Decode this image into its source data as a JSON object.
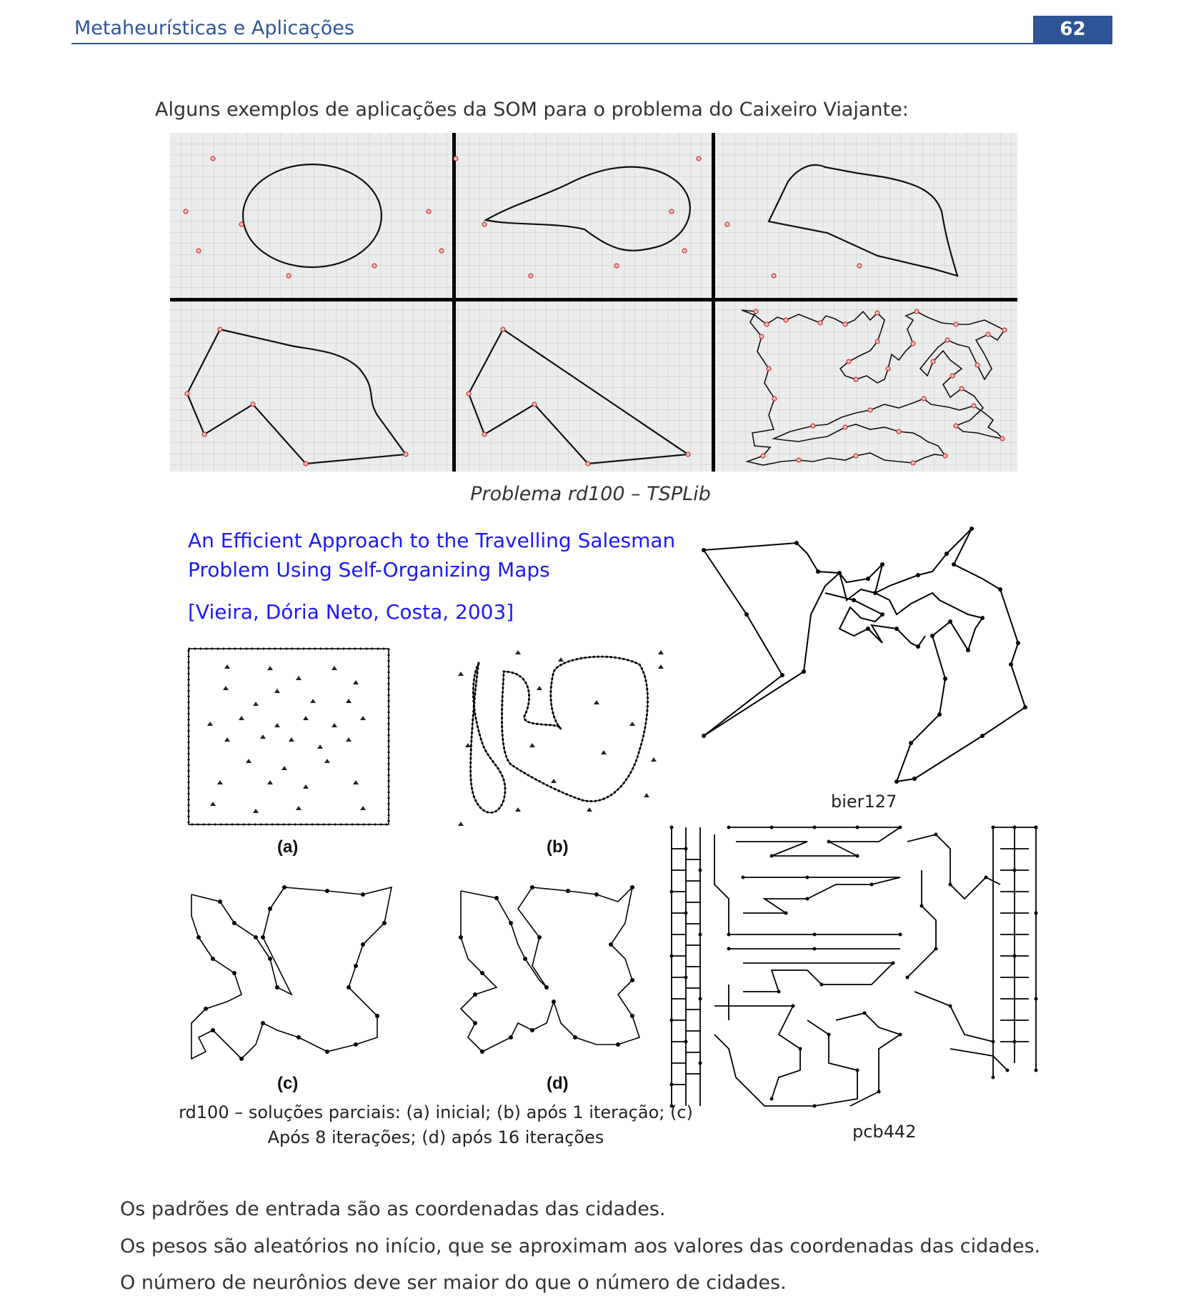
{
  "header": {
    "title": "Metaheurísticas e Aplicações",
    "page_number": "62",
    "color": "#2f5496"
  },
  "intro": "Alguns exemplos de aplicações da SOM para o problema do Caixeiro Viajante:",
  "figure1": {
    "caption": "Problema rd100 – TSPLib",
    "panel_count": 6,
    "city_color": "#e06a7a"
  },
  "paper": {
    "title_line1": "An Efficient Approach to the Travelling Salesman",
    "title_line2": "Problem Using Self-Organizing Maps",
    "citation": "[Vieira, Dória Neto, Costa, 2003]",
    "color": "#1a1aff"
  },
  "subfigures": {
    "a": "(a)",
    "b": "(b)",
    "c": "(c)",
    "d": "(d)"
  },
  "caption2": {
    "line1": "rd100 – soluções parciais: (a) inicial; (b) após 1 iteração; (c)",
    "line2": "Após 8 iterações; (d) após 16 iterações"
  },
  "labels": {
    "bier": "bier127",
    "pcb": "pcb442"
  },
  "paragraphs": [
    "Os padrões de entrada são as coordenadas das cidades.",
    "Os pesos são aleatórios no início, que se aproximam aos valores das coordenadas das cidades.",
    "O número de neurônios deve ser maior do que o número de cidades."
  ]
}
